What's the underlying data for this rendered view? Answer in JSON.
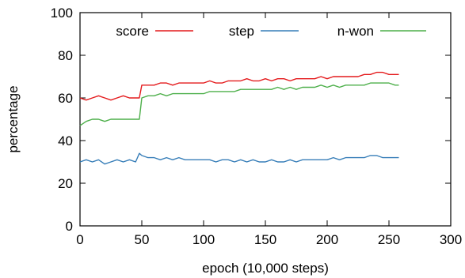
{
  "chart_data": {
    "type": "line",
    "xlabel": "epoch (10,000 steps)",
    "ylabel": "percentage",
    "xlim": [
      0,
      300
    ],
    "ylim": [
      0,
      100
    ],
    "xticks": [
      0,
      50,
      100,
      150,
      200,
      250,
      300
    ],
    "yticks": [
      0,
      20,
      40,
      60,
      80,
      100
    ],
    "grid": false,
    "legend_position": "top, inside, single row",
    "series": [
      {
        "name": "score",
        "color": "#e41a1c",
        "x": [
          0,
          5,
          10,
          15,
          20,
          25,
          30,
          35,
          40,
          45,
          48,
          50,
          55,
          60,
          65,
          70,
          75,
          80,
          85,
          90,
          95,
          100,
          105,
          110,
          115,
          120,
          125,
          130,
          135,
          140,
          145,
          150,
          155,
          160,
          165,
          170,
          175,
          180,
          185,
          190,
          195,
          200,
          205,
          210,
          215,
          220,
          225,
          230,
          235,
          240,
          245,
          250,
          255,
          258
        ],
        "y": [
          60,
          59,
          60,
          61,
          60,
          59,
          60,
          61,
          60,
          60,
          60,
          66,
          66,
          66,
          67,
          67,
          66,
          67,
          67,
          67,
          67,
          67,
          68,
          67,
          67,
          68,
          68,
          68,
          69,
          68,
          68,
          69,
          68,
          69,
          69,
          68,
          69,
          69,
          69,
          69,
          70,
          69,
          70,
          70,
          70,
          70,
          70,
          71,
          71,
          72,
          72,
          71,
          71,
          71
        ]
      },
      {
        "name": "step",
        "color": "#377eb8",
        "x": [
          0,
          5,
          10,
          15,
          20,
          25,
          30,
          35,
          40,
          45,
          48,
          50,
          55,
          60,
          65,
          70,
          75,
          80,
          85,
          90,
          95,
          100,
          105,
          110,
          115,
          120,
          125,
          130,
          135,
          140,
          145,
          150,
          155,
          160,
          165,
          170,
          175,
          180,
          185,
          190,
          195,
          200,
          205,
          210,
          215,
          220,
          225,
          230,
          235,
          240,
          245,
          250,
          255,
          258
        ],
        "y": [
          30,
          31,
          30,
          31,
          29,
          30,
          31,
          30,
          31,
          30,
          34,
          33,
          32,
          32,
          31,
          32,
          31,
          32,
          31,
          31,
          31,
          31,
          31,
          30,
          31,
          31,
          30,
          31,
          30,
          31,
          30,
          30,
          31,
          30,
          30,
          31,
          30,
          31,
          31,
          31,
          31,
          31,
          32,
          31,
          32,
          32,
          32,
          32,
          33,
          33,
          32,
          32,
          32,
          32
        ]
      },
      {
        "name": "n-won",
        "color": "#4daf4a",
        "x": [
          0,
          5,
          10,
          15,
          20,
          25,
          30,
          35,
          40,
          45,
          48,
          50,
          55,
          60,
          65,
          70,
          75,
          80,
          85,
          90,
          95,
          100,
          105,
          110,
          115,
          120,
          125,
          130,
          135,
          140,
          145,
          150,
          155,
          160,
          165,
          170,
          175,
          180,
          185,
          190,
          195,
          200,
          205,
          210,
          215,
          220,
          225,
          230,
          235,
          240,
          245,
          250,
          255,
          258
        ],
        "y": [
          47,
          49,
          50,
          50,
          49,
          50,
          50,
          50,
          50,
          50,
          50,
          60,
          61,
          61,
          62,
          61,
          62,
          62,
          62,
          62,
          62,
          62,
          63,
          63,
          63,
          63,
          63,
          64,
          64,
          64,
          64,
          64,
          64,
          65,
          64,
          65,
          64,
          65,
          65,
          65,
          66,
          65,
          66,
          65,
          66,
          66,
          66,
          66,
          67,
          67,
          67,
          67,
          66,
          66
        ]
      }
    ]
  }
}
